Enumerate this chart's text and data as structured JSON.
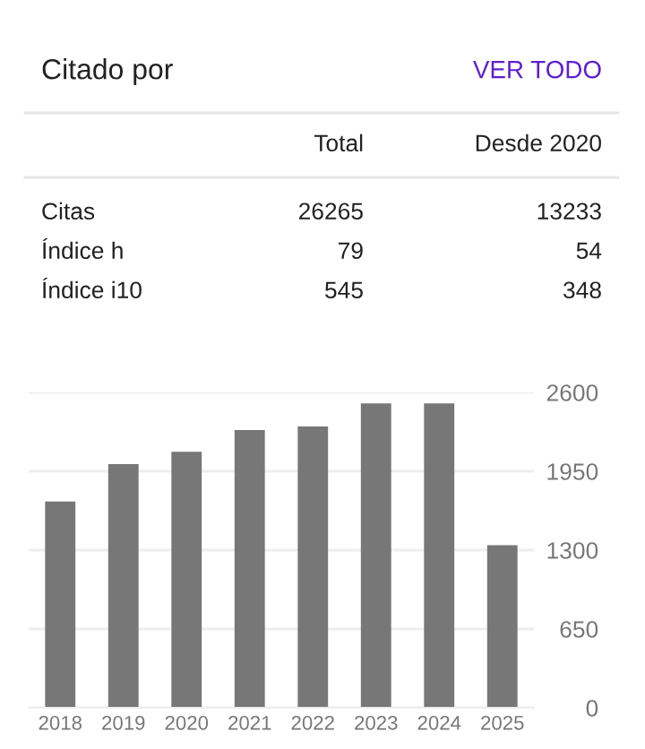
{
  "chart_data": [
    {
      "type": "other",
      "title": "Citado por",
      "annotations": [
        "VER TODO"
      ],
      "categories": [
        "Total",
        "Desde 2020"
      ],
      "y_categories": [
        "Citas",
        "Índice h",
        "Índice i10"
      ],
      "cell_labels": [
        [
          "26265",
          "13233"
        ],
        [
          "79",
          "54"
        ],
        [
          "545",
          "348"
        ]
      ]
    },
    {
      "type": "bar",
      "categories": [
        "2018",
        "2019",
        "2020",
        "2021",
        "2022",
        "2023",
        "2024",
        "2025"
      ],
      "values": [
        1700,
        2010,
        2110,
        2290,
        2320,
        2510,
        2510,
        1340
      ],
      "color": "#777777",
      "ylim": [
        0,
        2600
      ],
      "yticks": [
        0,
        650,
        1300,
        1950,
        2600
      ],
      "grid": "y"
    }
  ]
}
